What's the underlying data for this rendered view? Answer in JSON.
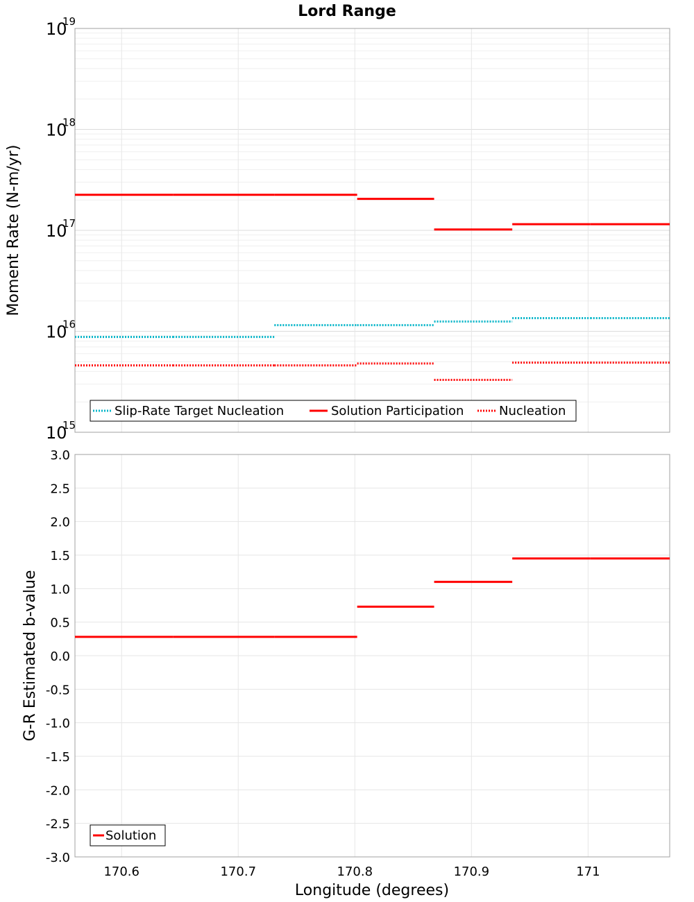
{
  "chart_data": {
    "title": "Lord Range",
    "xlabel": "Longitude (degrees)",
    "xlim": [
      170.56,
      171.07
    ],
    "xticks": [
      170.6,
      170.7,
      170.8,
      170.9,
      171
    ],
    "xtick_labels": [
      "170.6",
      "170.7",
      "170.8",
      "170.9",
      "171"
    ],
    "panels": [
      {
        "type": "line",
        "yscale": "log",
        "ylabel": "Moment Rate (N-m/yr)",
        "ylim": [
          1000000000000000.0,
          1e+19
        ],
        "ytick_exponents": [
          15,
          16,
          17,
          18,
          19
        ],
        "ytick_base": "10",
        "grid": true,
        "legend_position": "bottom-left",
        "series": [
          {
            "name": "Slip-Rate Target Nucleation",
            "color": "#00b4c8",
            "style": "dotted",
            "segments": [
              {
                "x": [
                  170.56,
                  170.644
                ],
                "y": 8800000000000000.0
              },
              {
                "x": [
                  170.644,
                  170.731
                ],
                "y": 8800000000000000.0
              },
              {
                "x": [
                  170.731,
                  170.802
                ],
                "y": 1.15e+16
              },
              {
                "x": [
                  170.802,
                  170.868
                ],
                "y": 1.15e+16
              },
              {
                "x": [
                  170.868,
                  170.935
                ],
                "y": 1.25e+16
              },
              {
                "x": [
                  170.935,
                  171.002
                ],
                "y": 1.35e+16
              },
              {
                "x": [
                  171.002,
                  171.07
                ],
                "y": 1.35e+16
              }
            ]
          },
          {
            "name": "Solution Participation",
            "color": "#ff0000",
            "style": "solid",
            "segments": [
              {
                "x": [
                  170.56,
                  170.644
                ],
                "y": 2.25e+17
              },
              {
                "x": [
                  170.644,
                  170.731
                ],
                "y": 2.25e+17
              },
              {
                "x": [
                  170.731,
                  170.802
                ],
                "y": 2.25e+17
              },
              {
                "x": [
                  170.802,
                  170.868
                ],
                "y": 2.05e+17
              },
              {
                "x": [
                  170.868,
                  170.935
                ],
                "y": 1.02e+17
              },
              {
                "x": [
                  170.935,
                  171.002
                ],
                "y": 1.15e+17
              },
              {
                "x": [
                  171.002,
                  171.07
                ],
                "y": 1.15e+17
              }
            ]
          },
          {
            "name": "Nucleation",
            "color": "#ff0000",
            "style": "dotted",
            "segments": [
              {
                "x": [
                  170.56,
                  170.644
                ],
                "y": 4600000000000000.0
              },
              {
                "x": [
                  170.644,
                  170.731
                ],
                "y": 4600000000000000.0
              },
              {
                "x": [
                  170.731,
                  170.802
                ],
                "y": 4600000000000000.0
              },
              {
                "x": [
                  170.802,
                  170.868
                ],
                "y": 4800000000000000.0
              },
              {
                "x": [
                  170.868,
                  170.935
                ],
                "y": 3300000000000000.0
              },
              {
                "x": [
                  170.935,
                  171.002
                ],
                "y": 4900000000000000.0
              },
              {
                "x": [
                  171.002,
                  171.07
                ],
                "y": 4900000000000000.0
              }
            ]
          }
        ]
      },
      {
        "type": "line",
        "yscale": "linear",
        "ylabel": "G-R Estimated b-value",
        "ylim": [
          -3.0,
          3.0
        ],
        "yticks": [
          -3.0,
          -2.5,
          -2.0,
          -1.5,
          -1.0,
          -0.5,
          0.0,
          0.5,
          1.0,
          1.5,
          2.0,
          2.5,
          3.0
        ],
        "ytick_labels": [
          "-3.0",
          "-2.5",
          "-2.0",
          "-1.5",
          "-1.0",
          "-0.5",
          "0.0",
          "0.5",
          "1.0",
          "1.5",
          "2.0",
          "2.5",
          "3.0"
        ],
        "grid": true,
        "legend_position": "bottom-left",
        "series": [
          {
            "name": "Solution",
            "color": "#ff0000",
            "style": "solid",
            "segments": [
              {
                "x": [
                  170.56,
                  170.644
                ],
                "y": 0.28
              },
              {
                "x": [
                  170.644,
                  170.731
                ],
                "y": 0.28
              },
              {
                "x": [
                  170.731,
                  170.802
                ],
                "y": 0.28
              },
              {
                "x": [
                  170.802,
                  170.868
                ],
                "y": 0.73
              },
              {
                "x": [
                  170.868,
                  170.935
                ],
                "y": 1.1
              },
              {
                "x": [
                  170.935,
                  171.002
                ],
                "y": 1.45
              },
              {
                "x": [
                  171.002,
                  171.07
                ],
                "y": 1.45
              }
            ]
          }
        ]
      }
    ]
  }
}
